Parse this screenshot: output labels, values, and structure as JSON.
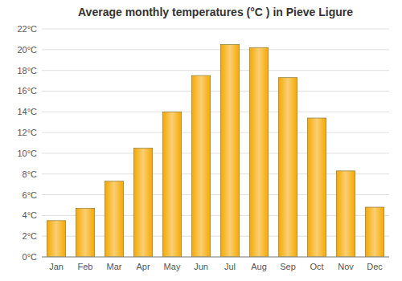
{
  "chart_data": {
    "type": "bar",
    "title": "Average monthly temperatures (°C ) in Pieve Ligure",
    "categories": [
      "Jan",
      "Feb",
      "Mar",
      "Apr",
      "May",
      "Jun",
      "Jul",
      "Aug",
      "Sep",
      "Oct",
      "Nov",
      "Dec"
    ],
    "values": [
      3.5,
      4.7,
      7.3,
      10.5,
      14.0,
      17.5,
      20.5,
      20.2,
      17.3,
      13.4,
      8.3,
      4.8
    ],
    "color": "#F5A800",
    "ylim": [
      0,
      22
    ],
    "yticks": [
      {
        "value": 0,
        "label": "0°C"
      },
      {
        "value": 2,
        "label": "2°C"
      },
      {
        "value": 4,
        "label": "4°C"
      },
      {
        "value": 6,
        "label": "6°C"
      },
      {
        "value": 8,
        "label": "8°C"
      },
      {
        "value": 10,
        "label": "10°C"
      },
      {
        "value": 12,
        "label": "12°C"
      },
      {
        "value": 14,
        "label": "14°C"
      },
      {
        "value": 16,
        "label": "16°C"
      },
      {
        "value": 18,
        "label": "18°C"
      },
      {
        "value": 20,
        "label": "20°C"
      },
      {
        "value": 22,
        "label": "22°C"
      }
    ],
    "grid": true
  }
}
